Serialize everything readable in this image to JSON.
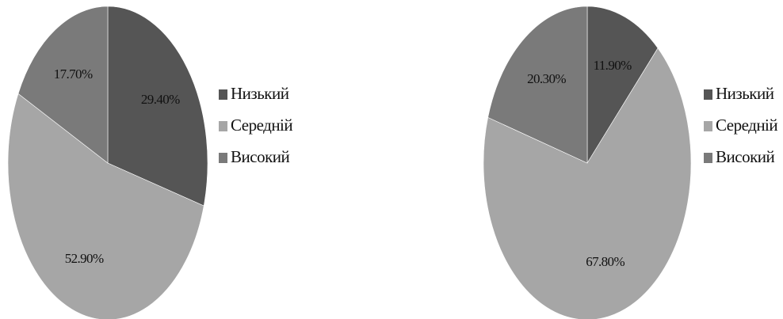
{
  "chart_data": [
    {
      "type": "pie",
      "title": "",
      "categories": [
        "Низький",
        "Середній",
        "Високий"
      ],
      "values": [
        29.4,
        52.9,
        17.7
      ],
      "labels": [
        "29.40%",
        "52.90%",
        "17.70%"
      ],
      "colors": [
        "#555555",
        "#a6a6a6",
        "#7a7a7a"
      ],
      "legend": {
        "position": "right",
        "items": [
          "Низький",
          "Середній",
          "Високий"
        ]
      },
      "start_angle_deg": 0,
      "direction": "clockwise"
    },
    {
      "type": "pie",
      "title": "",
      "categories": [
        "Низький",
        "Середній",
        "Високий"
      ],
      "values": [
        11.9,
        67.8,
        20.3
      ],
      "labels": [
        "11.90%",
        "67.80%",
        "20.30%"
      ],
      "colors": [
        "#555555",
        "#a6a6a6",
        "#7a7a7a"
      ],
      "legend": {
        "position": "right",
        "items": [
          "Низький",
          "Середній",
          "Високий"
        ]
      },
      "start_angle_deg": 0,
      "direction": "clockwise"
    }
  ]
}
